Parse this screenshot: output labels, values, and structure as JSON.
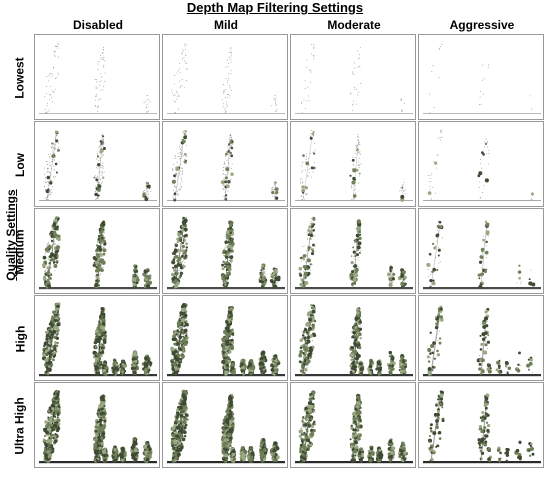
{
  "title": "Depth Map Filtering Settings",
  "side_title": "Quality Settings",
  "columns": [
    "Disabled",
    "Mild",
    "Moderate",
    "Aggressive"
  ],
  "rows": [
    "Lowest",
    "Low",
    "Medium",
    "High",
    "Ultra High"
  ],
  "colors": {
    "foliage_dark": "#3e4a33",
    "foliage_mid": "#6f7f57",
    "foliage_light": "#9aa884",
    "sparse_points": "#8a8a8a",
    "ground": "#2a2a2a",
    "cell_border": "#9a9a9a"
  }
}
